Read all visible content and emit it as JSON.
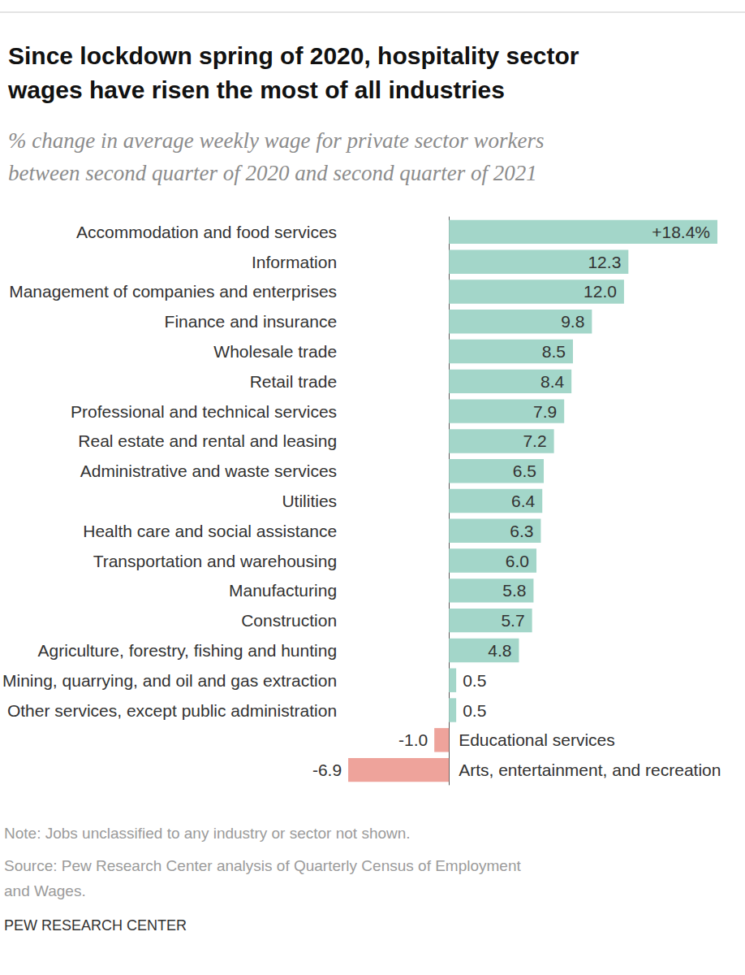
{
  "chart_data": {
    "type": "bar",
    "orientation": "horizontal",
    "title": "Since lockdown spring of 2020, hospitality sector\nwages have risen the most of all industries",
    "subtitle": "% change in average weekly wage for private sector workers\nbetween second quarter of 2020 and second quarter of 2021",
    "note": "Note: Jobs unclassified to any industry or sector not shown.",
    "source": "Source: Pew Research Center analysis of Quarterly Census of Employment\nand Wages.",
    "credit": "PEW RESEARCH CENTER",
    "categories": [
      "Accommodation and food services",
      "Information",
      "Management of companies and enterprises",
      "Finance and insurance",
      "Wholesale trade",
      "Retail trade",
      "Professional and technical services",
      "Real estate and rental and leasing",
      "Administrative and waste services",
      "Utilities",
      "Health care and social assistance",
      "Transportation and warehousing",
      "Manufacturing",
      "Construction",
      "Agriculture, forestry, fishing and hunting",
      "Mining, quarrying, and oil and gas extraction",
      "Other services, except public administration",
      "Educational services",
      "Arts, entertainment, and recreation"
    ],
    "values": [
      18.4,
      12.3,
      12.0,
      9.8,
      8.5,
      8.4,
      7.9,
      7.2,
      6.5,
      6.4,
      6.3,
      6.0,
      5.8,
      5.7,
      4.8,
      0.5,
      0.5,
      -1.0,
      -6.9
    ],
    "value_labels": [
      "+18.4%",
      "12.3",
      "12.0",
      "9.8",
      "8.5",
      "8.4",
      "7.9",
      "7.2",
      "6.5",
      "6.4",
      "6.3",
      "6.0",
      "5.8",
      "5.7",
      "4.8",
      "0.5",
      "0.5",
      "-1.0",
      "-6.9"
    ],
    "colors": [
      "#a3d6c9",
      "#a3d6c9",
      "#a3d6c9",
      "#a3d6c9",
      "#a3d6c9",
      "#a3d6c9",
      "#a3d6c9",
      "#a3d6c9",
      "#a3d6c9",
      "#a3d6c9",
      "#a3d6c9",
      "#a3d6c9",
      "#a3d6c9",
      "#a3d6c9",
      "#a3d6c9",
      "#a3d6c9",
      "#a3d6c9",
      "#eea39b",
      "#eea39b"
    ],
    "xlim": [
      -6.9,
      18.4
    ],
    "grid": false,
    "data_labels": true,
    "tick_labels": "y"
  }
}
